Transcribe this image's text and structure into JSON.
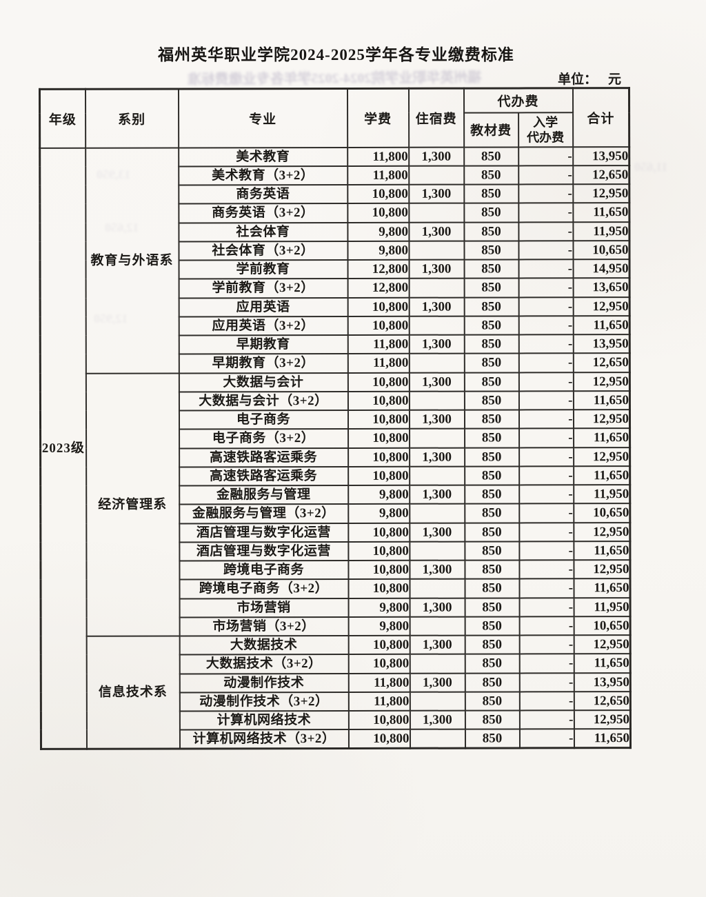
{
  "page": {
    "title": "福州英华职业学院2024-2025学年各专业缴费标准",
    "unit_label": "单位：",
    "unit_value": "元"
  },
  "ghost": {
    "title": "福州英华职业学院2024-2025学年各专业缴费标准",
    "fragments": [
      "13,950",
      "12,650",
      "12,950",
      "11,650"
    ]
  },
  "table": {
    "headers": {
      "grade": "年级",
      "department": "系别",
      "major": "专业",
      "tuition": "学费",
      "accommodation": "住宿费",
      "agency_group": "代办费",
      "textbook": "教材费",
      "enroll_agency_line1": "入学",
      "enroll_agency_line2": "代办费",
      "total": "合计"
    },
    "grade": "2023级",
    "sections": [
      {
        "department": "教育与外语系",
        "rows": [
          [
            "美术教育",
            "11,800",
            "1,300",
            "850",
            "-",
            "13,950"
          ],
          [
            "美术教育（3+2）",
            "11,800",
            "",
            "850",
            "-",
            "12,650"
          ],
          [
            "商务英语",
            "10,800",
            "1,300",
            "850",
            "-",
            "12,950"
          ],
          [
            "商务英语（3+2）",
            "10,800",
            "",
            "850",
            "-",
            "11,650"
          ],
          [
            "社会体育",
            "9,800",
            "1,300",
            "850",
            "-",
            "11,950"
          ],
          [
            "社会体育（3+2）",
            "9,800",
            "",
            "850",
            "-",
            "10,650"
          ],
          [
            "学前教育",
            "12,800",
            "1,300",
            "850",
            "-",
            "14,950"
          ],
          [
            "学前教育（3+2）",
            "12,800",
            "",
            "850",
            "-",
            "13,650"
          ],
          [
            "应用英语",
            "10,800",
            "1,300",
            "850",
            "-",
            "12,950"
          ],
          [
            "应用英语（3+2）",
            "10,800",
            "",
            "850",
            "-",
            "11,650"
          ],
          [
            "早期教育",
            "11,800",
            "1,300",
            "850",
            "-",
            "13,950"
          ],
          [
            "早期教育（3+2）",
            "11,800",
            "",
            "850",
            "-",
            "12,650"
          ]
        ]
      },
      {
        "department": "经济管理系",
        "rows": [
          [
            "大数据与会计",
            "10,800",
            "1,300",
            "850",
            "-",
            "12,950"
          ],
          [
            "大数据与会计（3+2）",
            "10,800",
            "",
            "850",
            "-",
            "11,650"
          ],
          [
            "电子商务",
            "10,800",
            "1,300",
            "850",
            "-",
            "12,950"
          ],
          [
            "电子商务（3+2）",
            "10,800",
            "",
            "850",
            "-",
            "11,650"
          ],
          [
            "高速铁路客运乘务",
            "10,800",
            "1,300",
            "850",
            "-",
            "12,950"
          ],
          [
            "高速铁路客运乘务",
            "10,800",
            "",
            "850",
            "-",
            "11,650"
          ],
          [
            "金融服务与管理",
            "9,800",
            "1,300",
            "850",
            "-",
            "11,950"
          ],
          [
            "金融服务与管理（3+2）",
            "9,800",
            "",
            "850",
            "-",
            "10,650"
          ],
          [
            "酒店管理与数字化运营",
            "10,800",
            "1,300",
            "850",
            "-",
            "12,950"
          ],
          [
            "酒店管理与数字化运营",
            "10,800",
            "",
            "850",
            "-",
            "11,650"
          ],
          [
            "跨境电子商务",
            "10,800",
            "1,300",
            "850",
            "-",
            "12,950"
          ],
          [
            "跨境电子商务（3+2）",
            "10,800",
            "",
            "850",
            "-",
            "11,650"
          ],
          [
            "市场营销",
            "9,800",
            "1,300",
            "850",
            "-",
            "11,950"
          ],
          [
            "市场营销（3+2）",
            "9,800",
            "",
            "850",
            "-",
            "10,650"
          ]
        ]
      },
      {
        "department": "信息技术系",
        "rows": [
          [
            "大数据技术",
            "10,800",
            "1,300",
            "850",
            "-",
            "12,950"
          ],
          [
            "大数据技术（3+2）",
            "10,800",
            "",
            "850",
            "-",
            "11,650"
          ],
          [
            "动漫制作技术",
            "11,800",
            "1,300",
            "850",
            "-",
            "13,950"
          ],
          [
            "动漫制作技术（3+2）",
            "11,800",
            "",
            "850",
            "-",
            "12,650"
          ],
          [
            "计算机网络技术",
            "10,800",
            "1,300",
            "850",
            "-",
            "12,950"
          ],
          [
            "计算机网络技术（3+2）",
            "10,800",
            "",
            "850",
            "-",
            "11,650"
          ]
        ]
      }
    ]
  }
}
